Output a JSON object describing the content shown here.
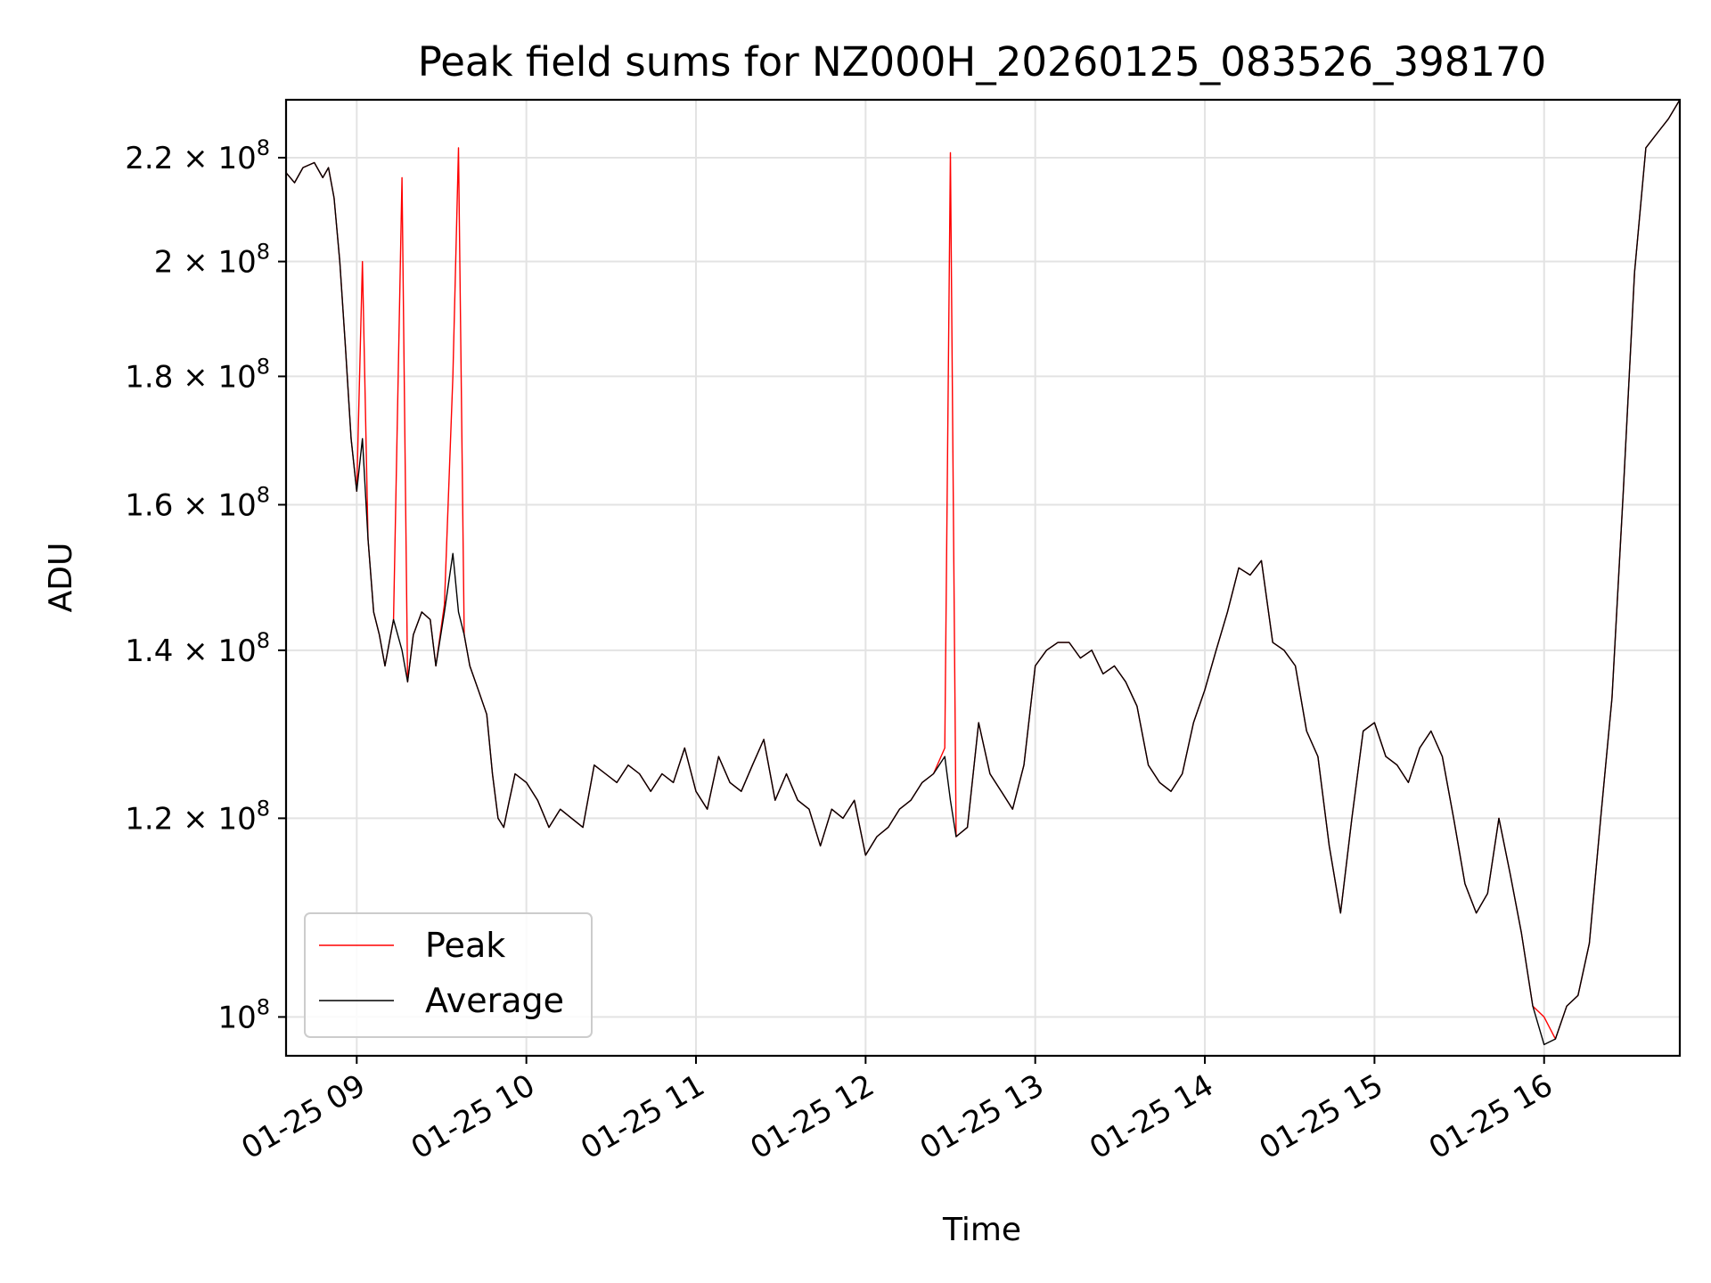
{
  "chart_data": {
    "type": "line",
    "title": "Peak field sums for NZ000H_20260125_083526_398170",
    "xlabel": "Time",
    "ylabel": "ADU",
    "y_scale": "log",
    "ylim": [
      96500000,
      232000000
    ],
    "xlim": [
      "2026-01-25 08:35",
      "2026-01-25 16:48"
    ],
    "grid": true,
    "legend": {
      "position": "lower-left",
      "entries": [
        "Peak",
        "Average"
      ]
    },
    "x_ticks": [
      "2026-01-25 09:00",
      "2026-01-25 10:00",
      "2026-01-25 11:00",
      "2026-01-25 12:00",
      "2026-01-25 13:00",
      "2026-01-25 14:00",
      "2026-01-25 15:00",
      "2026-01-25 16:00"
    ],
    "x_tick_labels": [
      "01-25 09",
      "01-25 10",
      "01-25 11",
      "01-25 12",
      "01-25 13",
      "01-25 14",
      "01-25 15",
      "01-25 16"
    ],
    "y_ticks": [
      {
        "value": 100000000,
        "mantissa": "",
        "exp": "8"
      },
      {
        "value": 120000000,
        "mantissa": "1.2",
        "exp": "8"
      },
      {
        "value": 140000000,
        "mantissa": "1.4",
        "exp": "8"
      },
      {
        "value": 160000000,
        "mantissa": "1.6",
        "exp": "8"
      },
      {
        "value": 180000000,
        "mantissa": "1.8",
        "exp": "8"
      },
      {
        "value": 200000000,
        "mantissa": "2",
        "exp": "8"
      },
      {
        "value": 220000000,
        "mantissa": "2.2",
        "exp": "8"
      }
    ],
    "series": [
      {
        "name": "Average",
        "color": "#000000",
        "x": [
          "2026-01-25 08:35",
          "2026-01-25 08:38",
          "2026-01-25 08:41",
          "2026-01-25 08:45",
          "2026-01-25 08:48",
          "2026-01-25 08:50",
          "2026-01-25 08:52",
          "2026-01-25 08:54",
          "2026-01-25 08:56",
          "2026-01-25 08:58",
          "2026-01-25 09:00",
          "2026-01-25 09:02",
          "2026-01-25 09:04",
          "2026-01-25 09:06",
          "2026-01-25 09:08",
          "2026-01-25 09:10",
          "2026-01-25 09:13",
          "2026-01-25 09:16",
          "2026-01-25 09:18",
          "2026-01-25 09:20",
          "2026-01-25 09:23",
          "2026-01-25 09:26",
          "2026-01-25 09:28",
          "2026-01-25 09:31",
          "2026-01-25 09:34",
          "2026-01-25 09:36",
          "2026-01-25 09:38",
          "2026-01-25 09:40",
          "2026-01-25 09:43",
          "2026-01-25 09:46",
          "2026-01-25 09:48",
          "2026-01-25 09:50",
          "2026-01-25 09:52",
          "2026-01-25 09:54",
          "2026-01-25 09:56",
          "2026-01-25 10:00",
          "2026-01-25 10:04",
          "2026-01-25 10:08",
          "2026-01-25 10:12",
          "2026-01-25 10:16",
          "2026-01-25 10:20",
          "2026-01-25 10:24",
          "2026-01-25 10:28",
          "2026-01-25 10:32",
          "2026-01-25 10:36",
          "2026-01-25 10:40",
          "2026-01-25 10:44",
          "2026-01-25 10:48",
          "2026-01-25 10:52",
          "2026-01-25 10:56",
          "2026-01-25 11:00",
          "2026-01-25 11:04",
          "2026-01-25 11:08",
          "2026-01-25 11:12",
          "2026-01-25 11:16",
          "2026-01-25 11:20",
          "2026-01-25 11:24",
          "2026-01-25 11:28",
          "2026-01-25 11:32",
          "2026-01-25 11:36",
          "2026-01-25 11:40",
          "2026-01-25 11:44",
          "2026-01-25 11:48",
          "2026-01-25 11:52",
          "2026-01-25 11:56",
          "2026-01-25 12:00",
          "2026-01-25 12:04",
          "2026-01-25 12:08",
          "2026-01-25 12:12",
          "2026-01-25 12:16",
          "2026-01-25 12:20",
          "2026-01-25 12:24",
          "2026-01-25 12:28",
          "2026-01-25 12:30",
          "2026-01-25 12:32",
          "2026-01-25 12:36",
          "2026-01-25 12:40",
          "2026-01-25 12:44",
          "2026-01-25 12:48",
          "2026-01-25 12:52",
          "2026-01-25 12:56",
          "2026-01-25 13:00",
          "2026-01-25 13:04",
          "2026-01-25 13:08",
          "2026-01-25 13:12",
          "2026-01-25 13:16",
          "2026-01-25 13:20",
          "2026-01-25 13:24",
          "2026-01-25 13:28",
          "2026-01-25 13:32",
          "2026-01-25 13:36",
          "2026-01-25 13:40",
          "2026-01-25 13:44",
          "2026-01-25 13:48",
          "2026-01-25 13:52",
          "2026-01-25 13:56",
          "2026-01-25 14:00",
          "2026-01-25 14:04",
          "2026-01-25 14:08",
          "2026-01-25 14:12",
          "2026-01-25 14:16",
          "2026-01-25 14:20",
          "2026-01-25 14:24",
          "2026-01-25 14:28",
          "2026-01-25 14:32",
          "2026-01-25 14:36",
          "2026-01-25 14:40",
          "2026-01-25 14:44",
          "2026-01-25 14:48",
          "2026-01-25 14:52",
          "2026-01-25 14:56",
          "2026-01-25 15:00",
          "2026-01-25 15:04",
          "2026-01-25 15:08",
          "2026-01-25 15:12",
          "2026-01-25 15:16",
          "2026-01-25 15:20",
          "2026-01-25 15:24",
          "2026-01-25 15:28",
          "2026-01-25 15:32",
          "2026-01-25 15:36",
          "2026-01-25 15:40",
          "2026-01-25 15:44",
          "2026-01-25 15:48",
          "2026-01-25 15:52",
          "2026-01-25 15:56",
          "2026-01-25 16:00",
          "2026-01-25 16:04",
          "2026-01-25 16:08",
          "2026-01-25 16:12",
          "2026-01-25 16:16",
          "2026-01-25 16:20",
          "2026-01-25 16:24",
          "2026-01-25 16:28",
          "2026-01-25 16:32",
          "2026-01-25 16:36",
          "2026-01-25 16:40",
          "2026-01-25 16:44",
          "2026-01-25 16:48"
        ],
        "values": [
          217000000,
          215000000,
          218000000,
          219000000,
          216000000,
          218000000,
          212000000,
          200000000,
          185000000,
          170000000,
          162000000,
          170000000,
          155000000,
          145000000,
          142000000,
          138000000,
          144000000,
          140000000,
          136000000,
          142000000,
          145000000,
          144000000,
          138000000,
          145000000,
          153000000,
          145000000,
          142000000,
          138000000,
          135000000,
          132000000,
          125000000,
          120000000,
          119000000,
          122000000,
          125000000,
          124000000,
          122000000,
          119000000,
          121000000,
          120000000,
          119000000,
          126000000,
          125000000,
          124000000,
          126000000,
          125000000,
          123000000,
          125000000,
          124000000,
          128000000,
          123000000,
          121000000,
          127000000,
          124000000,
          123000000,
          126000000,
          129000000,
          122000000,
          125000000,
          122000000,
          121000000,
          117000000,
          121000000,
          120000000,
          122000000,
          116000000,
          118000000,
          119000000,
          121000000,
          122000000,
          124000000,
          125000000,
          127000000,
          122000000,
          118000000,
          119000000,
          131000000,
          125000000,
          123000000,
          121000000,
          126000000,
          138000000,
          140000000,
          141000000,
          141000000,
          139000000,
          140000000,
          137000000,
          138000000,
          136000000,
          133000000,
          126000000,
          124000000,
          123000000,
          125000000,
          131000000,
          135000000,
          140000000,
          145000000,
          151000000,
          150000000,
          152000000,
          141000000,
          140000000,
          138000000,
          130000000,
          127000000,
          117000000,
          110000000,
          120000000,
          130000000,
          131000000,
          127000000,
          126000000,
          124000000,
          128000000,
          130000000,
          127000000,
          120000000,
          113000000,
          110000000,
          112000000,
          120000000,
          114000000,
          108000000,
          101000000,
          97500000,
          98000000,
          101000000,
          102000000,
          107000000,
          120000000,
          134000000,
          162000000,
          198000000,
          222000000,
          225000000,
          228000000,
          232000000
        ]
      },
      {
        "name": "Peak",
        "color": "#ff0000",
        "x": [
          "2026-01-25 08:35",
          "2026-01-25 08:38",
          "2026-01-25 08:41",
          "2026-01-25 08:45",
          "2026-01-25 08:48",
          "2026-01-25 08:50",
          "2026-01-25 08:52",
          "2026-01-25 08:54",
          "2026-01-25 08:56",
          "2026-01-25 08:58",
          "2026-01-25 09:00",
          "2026-01-25 09:02",
          "2026-01-25 09:04",
          "2026-01-25 09:06",
          "2026-01-25 09:08",
          "2026-01-25 09:10",
          "2026-01-25 09:13",
          "2026-01-25 09:16",
          "2026-01-25 09:18",
          "2026-01-25 09:20",
          "2026-01-25 09:23",
          "2026-01-25 09:26",
          "2026-01-25 09:28",
          "2026-01-25 09:31",
          "2026-01-25 09:34",
          "2026-01-25 09:36",
          "2026-01-25 09:38",
          "2026-01-25 09:40",
          "2026-01-25 09:43",
          "2026-01-25 09:46",
          "2026-01-25 09:48",
          "2026-01-25 09:50",
          "2026-01-25 09:52",
          "2026-01-25 09:54",
          "2026-01-25 09:56",
          "2026-01-25 10:00",
          "2026-01-25 10:04",
          "2026-01-25 10:08",
          "2026-01-25 10:12",
          "2026-01-25 10:16",
          "2026-01-25 10:20",
          "2026-01-25 10:24",
          "2026-01-25 10:28",
          "2026-01-25 10:32",
          "2026-01-25 10:36",
          "2026-01-25 10:40",
          "2026-01-25 10:44",
          "2026-01-25 10:48",
          "2026-01-25 10:52",
          "2026-01-25 10:56",
          "2026-01-25 11:00",
          "2026-01-25 11:04",
          "2026-01-25 11:08",
          "2026-01-25 11:12",
          "2026-01-25 11:16",
          "2026-01-25 11:20",
          "2026-01-25 11:24",
          "2026-01-25 11:28",
          "2026-01-25 11:32",
          "2026-01-25 11:36",
          "2026-01-25 11:40",
          "2026-01-25 11:44",
          "2026-01-25 11:48",
          "2026-01-25 11:52",
          "2026-01-25 11:56",
          "2026-01-25 12:00",
          "2026-01-25 12:04",
          "2026-01-25 12:08",
          "2026-01-25 12:12",
          "2026-01-25 12:16",
          "2026-01-25 12:20",
          "2026-01-25 12:24",
          "2026-01-25 12:28",
          "2026-01-25 12:30",
          "2026-01-25 12:32",
          "2026-01-25 12:36",
          "2026-01-25 12:40",
          "2026-01-25 12:44",
          "2026-01-25 12:48",
          "2026-01-25 12:52",
          "2026-01-25 12:56",
          "2026-01-25 13:00",
          "2026-01-25 13:04",
          "2026-01-25 13:08",
          "2026-01-25 13:12",
          "2026-01-25 13:16",
          "2026-01-25 13:20",
          "2026-01-25 13:24",
          "2026-01-25 13:28",
          "2026-01-25 13:32",
          "2026-01-25 13:36",
          "2026-01-25 13:40",
          "2026-01-25 13:44",
          "2026-01-25 13:48",
          "2026-01-25 13:52",
          "2026-01-25 13:56",
          "2026-01-25 14:00",
          "2026-01-25 14:04",
          "2026-01-25 14:08",
          "2026-01-25 14:12",
          "2026-01-25 14:16",
          "2026-01-25 14:20",
          "2026-01-25 14:24",
          "2026-01-25 14:28",
          "2026-01-25 14:32",
          "2026-01-25 14:36",
          "2026-01-25 14:40",
          "2026-01-25 14:44",
          "2026-01-25 14:48",
          "2026-01-25 14:52",
          "2026-01-25 14:56",
          "2026-01-25 15:00",
          "2026-01-25 15:04",
          "2026-01-25 15:08",
          "2026-01-25 15:12",
          "2026-01-25 15:16",
          "2026-01-25 15:20",
          "2026-01-25 15:24",
          "2026-01-25 15:28",
          "2026-01-25 15:32",
          "2026-01-25 15:36",
          "2026-01-25 15:40",
          "2026-01-25 15:44",
          "2026-01-25 15:48",
          "2026-01-25 15:52",
          "2026-01-25 15:56",
          "2026-01-25 16:00",
          "2026-01-25 16:04",
          "2026-01-25 16:08",
          "2026-01-25 16:12",
          "2026-01-25 16:16",
          "2026-01-25 16:20",
          "2026-01-25 16:24",
          "2026-01-25 16:28",
          "2026-01-25 16:32",
          "2026-01-25 16:36",
          "2026-01-25 16:40",
          "2026-01-25 16:44",
          "2026-01-25 16:48"
        ],
        "values": [
          217000000,
          215000000,
          218000000,
          219000000,
          216000000,
          218000000,
          212000000,
          200000000,
          185000000,
          170000000,
          162000000,
          200000000,
          155000000,
          145000000,
          142000000,
          138000000,
          144000000,
          216000000,
          136000000,
          142000000,
          145000000,
          144000000,
          138000000,
          146000000,
          180000000,
          222000000,
          142000000,
          138000000,
          135000000,
          132000000,
          125000000,
          120000000,
          119000000,
          122000000,
          125000000,
          124000000,
          122000000,
          119000000,
          121000000,
          120000000,
          119000000,
          126000000,
          125000000,
          124000000,
          126000000,
          125000000,
          123000000,
          125000000,
          124000000,
          128000000,
          123000000,
          121000000,
          127000000,
          124000000,
          123000000,
          126000000,
          129000000,
          122000000,
          125000000,
          122000000,
          121000000,
          117000000,
          121000000,
          120000000,
          122000000,
          116000000,
          118000000,
          119000000,
          121000000,
          122000000,
          124000000,
          125000000,
          128000000,
          221000000,
          118000000,
          119000000,
          131000000,
          125000000,
          123000000,
          121000000,
          126000000,
          138000000,
          140000000,
          141000000,
          141000000,
          139000000,
          140000000,
          137000000,
          138000000,
          136000000,
          133000000,
          126000000,
          124000000,
          123000000,
          125000000,
          131000000,
          135000000,
          140000000,
          145000000,
          151000000,
          150000000,
          152000000,
          141000000,
          140000000,
          138000000,
          130000000,
          127000000,
          117000000,
          110000000,
          120000000,
          130000000,
          131000000,
          127000000,
          126000000,
          124000000,
          128000000,
          130000000,
          127000000,
          120000000,
          113000000,
          110000000,
          112000000,
          120000000,
          114000000,
          108000000,
          101000000,
          100000000,
          98000000,
          101000000,
          102000000,
          107000000,
          120000000,
          134000000,
          162000000,
          198000000,
          222000000,
          225000000,
          228000000,
          232000000
        ]
      }
    ]
  }
}
